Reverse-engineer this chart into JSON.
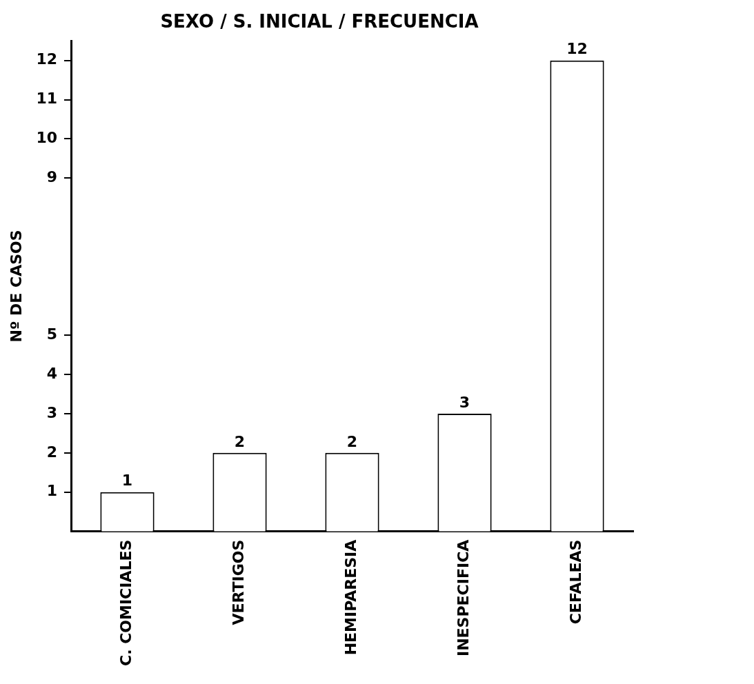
{
  "chart_data": {
    "type": "bar",
    "title": "SEXO / S. INICIAL / FRECUENCIA",
    "ylabel": "Nº DE CASOS",
    "categories": [
      "C. COMICIALES",
      "VERTIGOS",
      "HEMIPARESIA",
      "INESPECIFICA",
      "CEFALEAS"
    ],
    "values": [
      1,
      2,
      2,
      3,
      12
    ],
    "color": "#ffffff",
    "ylim": [
      0,
      12.5
    ],
    "yticks": [
      1,
      2,
      3,
      4,
      5,
      9,
      10,
      11,
      12
    ],
    "grid": false,
    "legend": false,
    "data_labels": true
  }
}
